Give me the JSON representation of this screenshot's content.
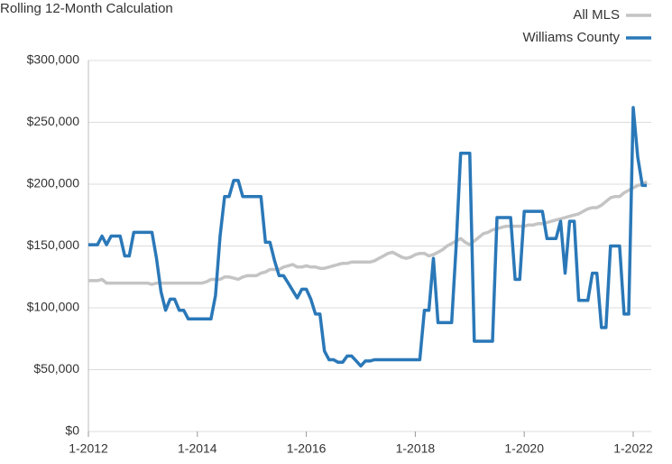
{
  "chart_data": {
    "type": "line",
    "title": "Rolling 12-Month Calculation",
    "categories": [
      "1-2012",
      null,
      null,
      null,
      null,
      null,
      null,
      null,
      null,
      null,
      null,
      null,
      null,
      null,
      null,
      null,
      null,
      null,
      null,
      null,
      null,
      null,
      null,
      null,
      "1-2014",
      null,
      null,
      null,
      null,
      null,
      null,
      null,
      null,
      null,
      null,
      null,
      null,
      null,
      null,
      null,
      null,
      null,
      null,
      null,
      null,
      null,
      null,
      null,
      "1-2016",
      null,
      null,
      null,
      null,
      null,
      null,
      null,
      null,
      null,
      null,
      null,
      null,
      null,
      null,
      null,
      null,
      null,
      null,
      null,
      null,
      null,
      null,
      null,
      "1-2018",
      null,
      null,
      null,
      null,
      null,
      null,
      null,
      null,
      null,
      null,
      null,
      null,
      null,
      null,
      null,
      null,
      null,
      null,
      null,
      null,
      null,
      null,
      null,
      "1-2020",
      null,
      null,
      null,
      null,
      null,
      null,
      null,
      null,
      null,
      null,
      null,
      null,
      null,
      null,
      null,
      null,
      null,
      null,
      null,
      null,
      null,
      null,
      null,
      "1-2022",
      null,
      null,
      null
    ],
    "series": [
      {
        "name": "All MLS",
        "color": "#c4c4c4",
        "values": [
          122000,
          122000,
          122000,
          123000,
          120000,
          120000,
          120000,
          120000,
          120000,
          120000,
          120000,
          120000,
          120000,
          120000,
          119000,
          120000,
          120000,
          120000,
          120000,
          120000,
          120000,
          120000,
          120000,
          120000,
          120000,
          120000,
          121000,
          123000,
          123000,
          123000,
          125000,
          125000,
          124000,
          123000,
          125000,
          126000,
          126000,
          126000,
          128000,
          129000,
          131000,
          131000,
          131000,
          133000,
          134000,
          135000,
          133000,
          133000,
          134000,
          133000,
          133000,
          132000,
          132000,
          133000,
          134000,
          135000,
          136000,
          136000,
          137000,
          137000,
          137000,
          137000,
          137000,
          138000,
          140000,
          142000,
          144000,
          145000,
          143000,
          141000,
          140000,
          141000,
          143000,
          144000,
          144000,
          142000,
          143000,
          145000,
          147000,
          150000,
          152000,
          154000,
          156000,
          153000,
          151000,
          154000,
          157000,
          160000,
          161000,
          163000,
          164000,
          165000,
          166000,
          166000,
          166000,
          166000,
          166000,
          167000,
          167000,
          168000,
          168000,
          169000,
          170000,
          171000,
          172000,
          173000,
          174000,
          175000,
          176000,
          178000,
          180000,
          181000,
          181000,
          183000,
          186000,
          189000,
          190000,
          190000,
          193000,
          195000,
          197000,
          199000,
          200000,
          202000
        ]
      },
      {
        "name": "Williams County",
        "color": "#2a78b8",
        "values": [
          151000,
          151000,
          151000,
          158000,
          151000,
          158000,
          158000,
          158000,
          142000,
          142000,
          161000,
          161000,
          161000,
          161000,
          161000,
          140000,
          113000,
          98000,
          107000,
          107000,
          98000,
          98000,
          91000,
          91000,
          91000,
          91000,
          91000,
          91000,
          110000,
          158000,
          190000,
          190000,
          203000,
          203000,
          190000,
          190000,
          190000,
          190000,
          190000,
          153000,
          153000,
          138000,
          126000,
          126000,
          120000,
          114000,
          108000,
          115000,
          115000,
          107000,
          95000,
          95000,
          65000,
          58000,
          58000,
          56000,
          56000,
          61000,
          61000,
          57000,
          53000,
          57000,
          57000,
          58000,
          58000,
          58000,
          58000,
          58000,
          58000,
          58000,
          58000,
          58000,
          58000,
          58000,
          98000,
          98000,
          140000,
          88000,
          88000,
          88000,
          88000,
          150000,
          225000,
          225000,
          225000,
          73000,
          73000,
          73000,
          73000,
          73000,
          173000,
          173000,
          173000,
          173000,
          123000,
          123000,
          178000,
          178000,
          178000,
          178000,
          178000,
          156000,
          156000,
          156000,
          170000,
          128000,
          170000,
          170000,
          106000,
          106000,
          106000,
          128000,
          128000,
          84000,
          84000,
          150000,
          150000,
          150000,
          95000,
          95000,
          262000,
          222000,
          199000,
          199000
        ]
      }
    ],
    "ylim": [
      0,
      300000
    ],
    "yticks": [
      {
        "value": 0,
        "label": "$0"
      },
      {
        "value": 50000,
        "label": "$50,000"
      },
      {
        "value": 100000,
        "label": "$100,000"
      },
      {
        "value": 150000,
        "label": "$150,000"
      },
      {
        "value": 200000,
        "label": "$200,000"
      },
      {
        "value": 250000,
        "label": "$250,000"
      },
      {
        "value": 300000,
        "label": "$300,000"
      }
    ],
    "grid": true
  }
}
